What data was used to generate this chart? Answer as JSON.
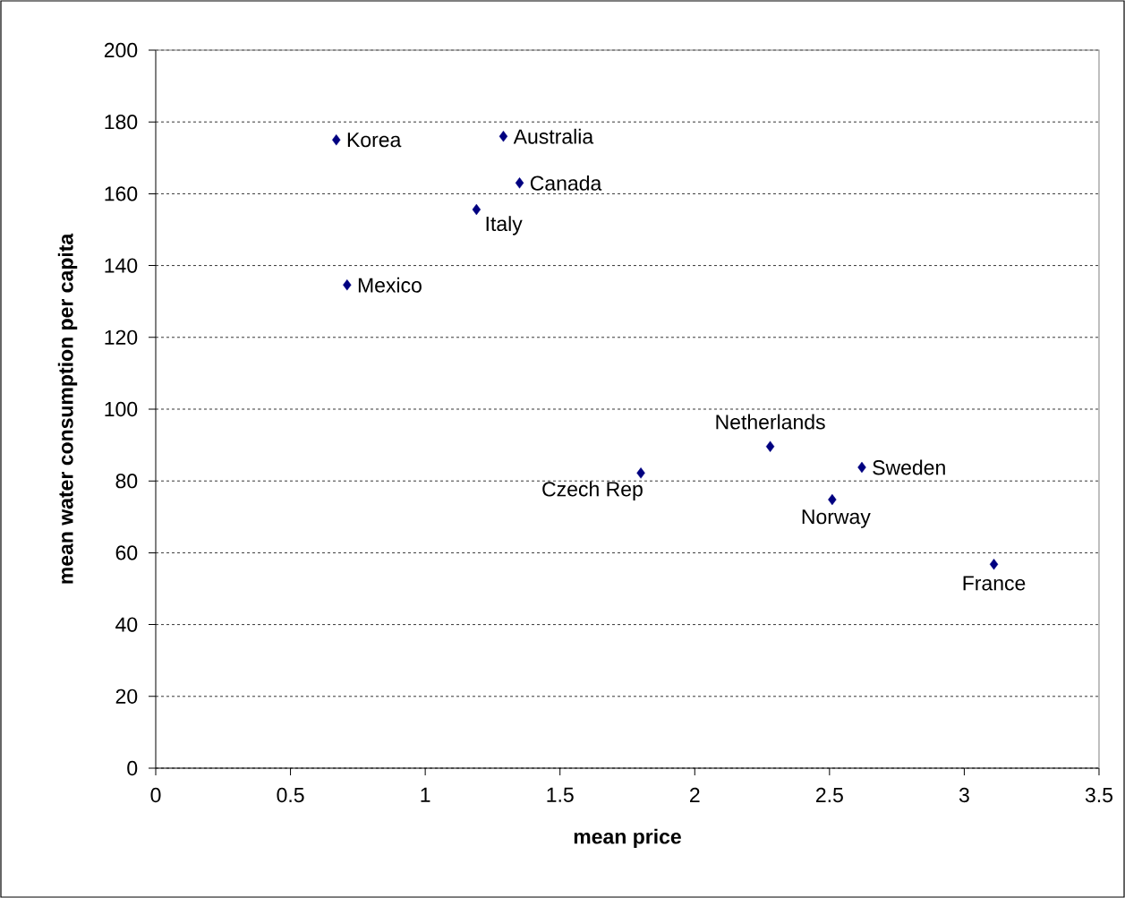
{
  "chart_data": {
    "type": "scatter",
    "xlabel": "mean price",
    "ylabel": "mean water consumption per capita",
    "x": [
      0.67,
      1.29,
      1.35,
      1.19,
      0.71,
      1.8,
      2.28,
      2.62,
      2.51,
      3.11
    ],
    "values": [
      175,
      176,
      163,
      155.6,
      134.6,
      82.2,
      89.6,
      83.8,
      74.8,
      56.8
    ],
    "color": "#000080",
    "marker": "diamond",
    "annotations": [
      {
        "text": "Korea",
        "x": 0.67,
        "y": 175
      },
      {
        "text": "Australia",
        "x": 1.29,
        "y": 176
      },
      {
        "text": "Canada",
        "x": 1.35,
        "y": 163
      },
      {
        "text": "Italy",
        "x": 1.19,
        "y": 155.6
      },
      {
        "text": "Mexico",
        "x": 0.71,
        "y": 134.6
      },
      {
        "text": "Czech Rep",
        "x": 1.8,
        "y": 82.2
      },
      {
        "text": "Netherlands",
        "x": 2.28,
        "y": 89.6
      },
      {
        "text": "Sweden",
        "x": 2.62,
        "y": 83.8
      },
      {
        "text": "Norway",
        "x": 2.51,
        "y": 74.8
      },
      {
        "text": "France",
        "x": 3.11,
        "y": 56.8
      }
    ],
    "xlim": [
      0,
      3.5
    ],
    "xticks": [
      0,
      0.5,
      1,
      1.5,
      2,
      2.5,
      3,
      3.5
    ],
    "ylim": [
      0,
      200
    ],
    "yticks": [
      0,
      20,
      40,
      60,
      80,
      100,
      120,
      140,
      160,
      180,
      200
    ],
    "grid": "y"
  }
}
